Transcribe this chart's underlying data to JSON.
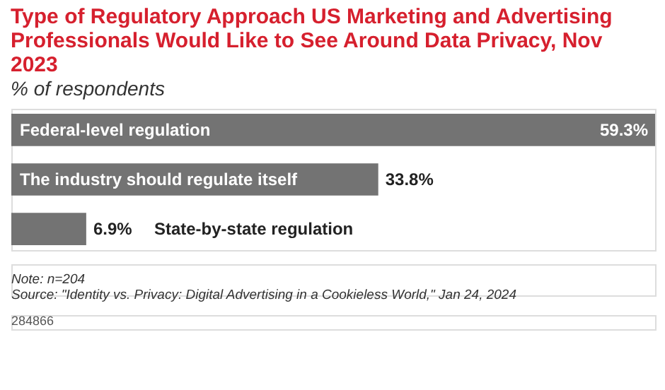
{
  "chart_data": {
    "type": "bar",
    "orientation": "horizontal",
    "title": "Type of Regulatory Approach US Marketing and Advertising Professionals Would Like to See Around Data Privacy, Nov 2023",
    "subtitle": "% of respondents",
    "categories": [
      "Federal-level regulation",
      "The industry should regulate itself",
      "State-by-state regulation"
    ],
    "values": [
      59.3,
      33.8,
      6.9
    ],
    "value_labels": [
      "59.3%",
      "33.8%",
      "6.9%"
    ],
    "color": "#737373",
    "annotations": [
      "Note: n=204",
      "Source: \"Identity vs. Privacy: Digital Advertising in a Cookieless World,\" Jan 24, 2024",
      "284866"
    ]
  }
}
